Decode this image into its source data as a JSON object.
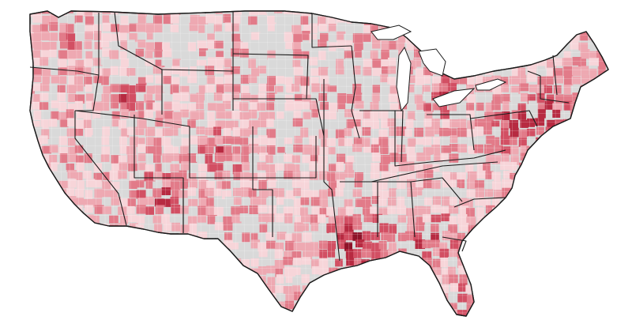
{
  "map": {
    "type": "choropleth",
    "region": "contiguous-united-states",
    "units": "counties",
    "borders": "state-outlines",
    "no_data_color": "#d9d9d9",
    "palette": [
      "#f7d5d9",
      "#eea9b2",
      "#e27b89",
      "#d24f63",
      "#b72a41",
      "#8e1329"
    ],
    "background": "#ffffff",
    "legend": "none",
    "visible_text": "none"
  }
}
